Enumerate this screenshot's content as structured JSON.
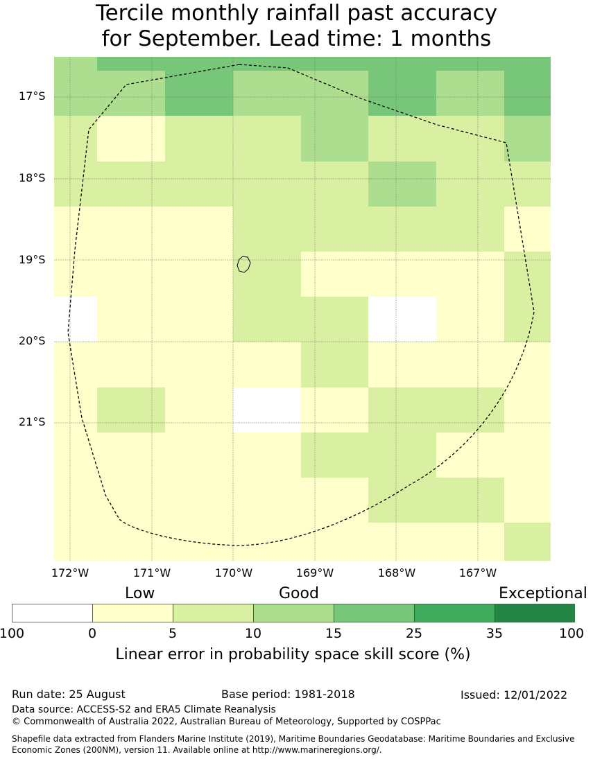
{
  "title_line1": "Tercile monthly rainfall past accuracy",
  "title_line2": "for September. Lead time: 1 months",
  "map": {
    "lat_labels": [
      "17°S",
      "18°S",
      "19°S",
      "20°S",
      "21°S"
    ],
    "lon_labels": [
      "172°W",
      "171°W",
      "170°W",
      "169°W",
      "168°W",
      "167°W"
    ],
    "colors": {
      "none": "#ffffff",
      "c0": "#ffffcc",
      "c5": "#d9f0a3",
      "c10": "#addd8e",
      "c15": "#78c679",
      "c25": "#41ab5d",
      "c35": "#238443"
    },
    "grid_levels": [
      [
        "c10",
        "c15",
        "c15",
        "c15",
        "c15",
        "c15",
        "c15",
        "c15"
      ],
      [
        "c10",
        "c10",
        "c15",
        "c10",
        "c10",
        "c15",
        "c10",
        "c15"
      ],
      [
        "c5",
        "c0",
        "c5",
        "c5",
        "c10",
        "c5",
        "c5",
        "c10"
      ],
      [
        "c5",
        "c5",
        "c5",
        "c5",
        "c5",
        "c10",
        "c5",
        "c5"
      ],
      [
        "c0",
        "c0",
        "c0",
        "c5",
        "c5",
        "c5",
        "c5",
        "c0"
      ],
      [
        "c0",
        "c0",
        "c0",
        "c5",
        "c0",
        "c0",
        "c0",
        "c5"
      ],
      [
        "none",
        "c0",
        "c0",
        "c5",
        "c5",
        "none",
        "c0",
        "c5"
      ],
      [
        "c0",
        "c0",
        "c0",
        "c0",
        "c5",
        "c0",
        "c0",
        "c0"
      ],
      [
        "c0",
        "c5",
        "c0",
        "none",
        "c0",
        "c5",
        "c5",
        "c0"
      ],
      [
        "c0",
        "c0",
        "c0",
        "c0",
        "c5",
        "c5",
        "c0",
        "c0"
      ],
      [
        "c0",
        "c0",
        "c0",
        "c0",
        "c0",
        "c5",
        "c5",
        "c0"
      ],
      [
        "c0",
        "c0",
        "c0",
        "c0",
        "c0",
        "c0",
        "c0",
        "c5"
      ]
    ]
  },
  "legend": {
    "categories": [
      "Low",
      "Good",
      "Exceptional"
    ],
    "colors": [
      "#ffffff",
      "#ffffcc",
      "#d9f0a3",
      "#addd8e",
      "#78c679",
      "#41ab5d",
      "#238443"
    ],
    "ticks": [
      "100",
      "0",
      "5",
      "10",
      "15",
      "25",
      "35",
      "100"
    ],
    "title": "Linear error in probability space skill score (%)"
  },
  "footer": {
    "run_date": "Run date: 25 August",
    "base_period": "Base period: 1981-2018",
    "issued": "Issued: 12/01/2022",
    "data_source": "Data source: ACCESS-S2 and ERA5 Climate Reanalysis",
    "copyright": "© Commonwealth of Australia 2022, Australian Bureau of Meteorology, Supported by COSPPac",
    "shapefile_line1": "Shapefile data extracted from Flanders Marine Institute (2019), Maritime Boundaries Geodatabase: Maritime Boundaries and Exclusive",
    "shapefile_line2": "Economic Zones (200NM), version 11. Available online at http://www.marineregions.org/."
  }
}
